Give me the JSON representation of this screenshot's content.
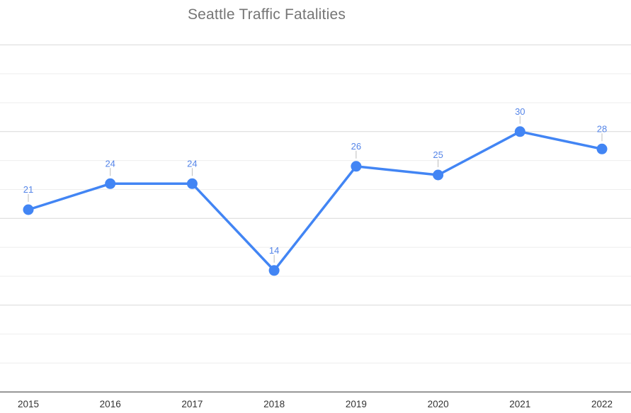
{
  "chart_data": {
    "type": "line",
    "title": "Seattle Traffic Fatalities",
    "categories": [
      "2015",
      "2016",
      "2017",
      "2018",
      "2019",
      "2020",
      "2021",
      "2022"
    ],
    "values": [
      21,
      24,
      24,
      14,
      26,
      25,
      30,
      28
    ],
    "annotations": [
      "21",
      "24",
      "24",
      "14",
      "26",
      "25",
      "30",
      "28"
    ],
    "xlabel": "",
    "ylabel": "",
    "ylim": [
      0,
      40
    ],
    "legend": "none",
    "grid": "on",
    "gridlines": {
      "major_values": [
        10,
        20,
        30,
        40
      ],
      "minor_step": 3.3333,
      "major_color": "#d9d9d9",
      "minor_color": "#eeeeee",
      "baseline_value": 0,
      "baseline_color": "#333333"
    },
    "colors": {
      "series": "#4285f4",
      "annotation_text": "#5585e8",
      "annotation_stem": "#bdbdbd",
      "axis_label_text": "#333333",
      "title_text": "#757575",
      "background": "#ffffff"
    }
  }
}
